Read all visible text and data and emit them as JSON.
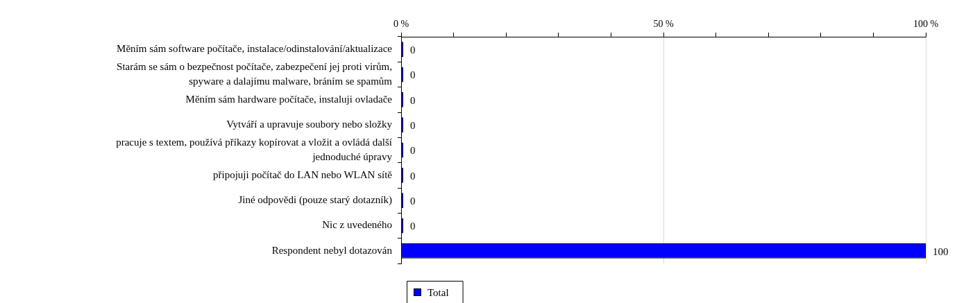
{
  "chart_data": {
    "type": "bar",
    "orientation": "horizontal",
    "categories": [
      "Měním sám software počítače, instalace/odinstalování/aktualizace",
      "Starám se sám o bezpečnost počítače, zabezpečení jej proti virům,\nspyware a dalajímu malware, bráním se spamům",
      "Měním sám hardware počítače, instaluji ovladače",
      "Vytváří a upravuje soubory nebo složky",
      "pracuje s textem, používá příkazy kopírovat a vložit a ovládá další\njednoduché úpravy",
      "připojuji počítač do LAN nebo WLAN sítě",
      "Jiné odpovědi (pouze starý dotazník)",
      "Nic z uvedeného",
      "Respondent nebyl dotazován"
    ],
    "series": [
      {
        "name": "Total",
        "color": "#0000ff",
        "values": [
          0,
          0,
          0,
          0,
          0,
          0,
          0,
          0,
          100
        ]
      }
    ],
    "xlim": [
      0,
      100
    ],
    "xticks": [
      {
        "value": 0,
        "label": "0 %"
      },
      {
        "value": 10,
        "label": null
      },
      {
        "value": 20,
        "label": null
      },
      {
        "value": 30,
        "label": null
      },
      {
        "value": 40,
        "label": null
      },
      {
        "value": 50,
        "label": "50 %"
      },
      {
        "value": 60,
        "label": null
      },
      {
        "value": 70,
        "label": null
      },
      {
        "value": 80,
        "label": null
      },
      {
        "value": 90,
        "label": null
      },
      {
        "value": 100,
        "label": "100 %"
      }
    ],
    "grid": "x",
    "legend": "bottom left",
    "data_labels": true
  }
}
